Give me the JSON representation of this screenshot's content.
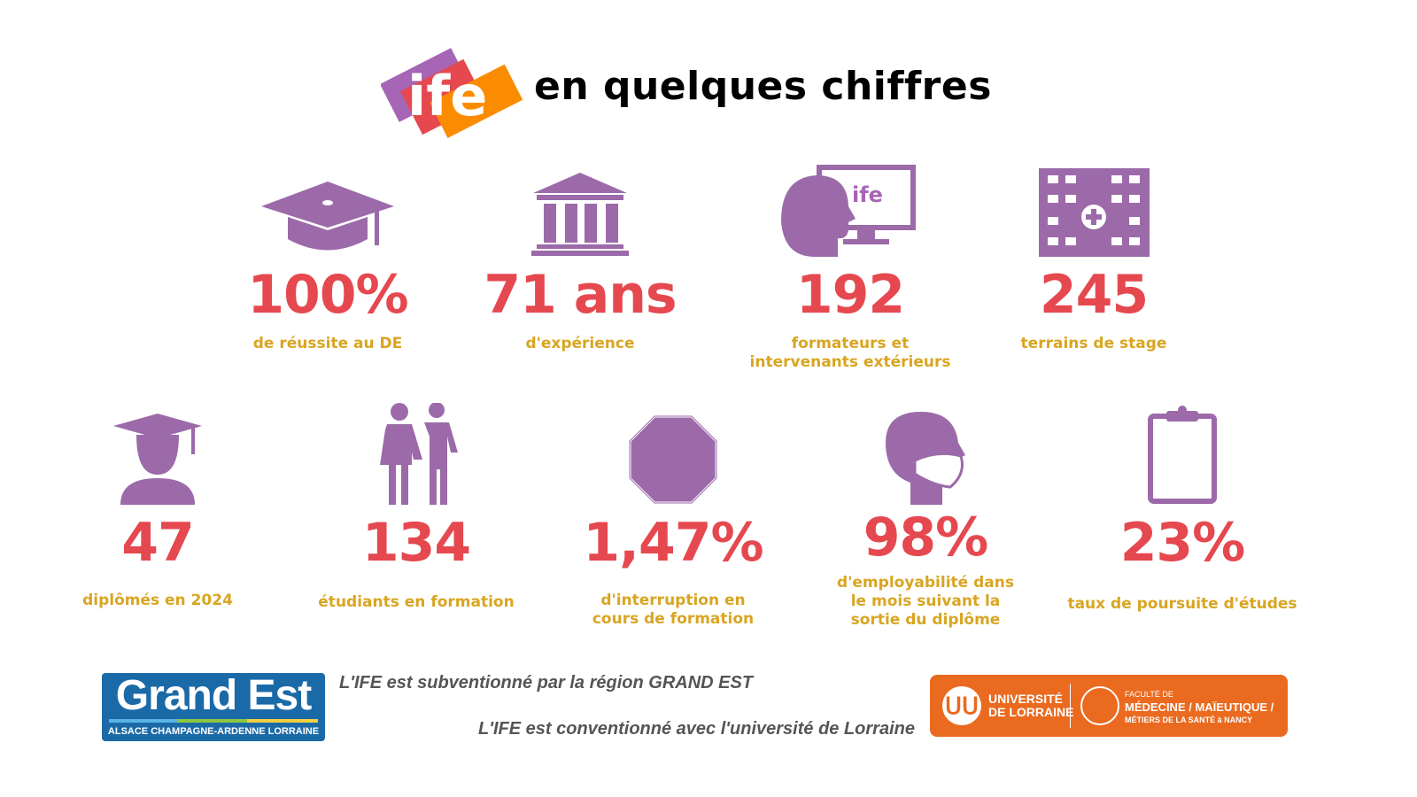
{
  "header": {
    "logo_text": "ife",
    "title": "en quelques chiffres"
  },
  "colors": {
    "purple": "#9c6aa9",
    "red": "#e5484f",
    "gold": "#d9a521",
    "orange": "#ea6a1f",
    "blue": "#1b6aa8"
  },
  "stats_row1": [
    {
      "icon": "graduation-cap-icon",
      "value": "100%",
      "label": "de réussite au DE"
    },
    {
      "icon": "institution-building-icon",
      "value": "71 ans",
      "label": "d'expérience"
    },
    {
      "icon": "person-screen-icon",
      "value": "192",
      "label": "formateurs et intervenants extérieurs",
      "screen_logo": "ife"
    },
    {
      "icon": "hospital-icon",
      "value": "245",
      "label": "terrains de stage"
    }
  ],
  "stats_row2": [
    {
      "icon": "graduate-person-icon",
      "value": "47",
      "label": "diplômés en 2024"
    },
    {
      "icon": "couple-people-icon",
      "value": "134",
      "label": "étudiants en formation"
    },
    {
      "icon": "stop-octagon-icon",
      "value": "1,47%",
      "label": "d'interruption en cours de formation"
    },
    {
      "icon": "masked-head-icon",
      "value": "98%",
      "label": "d'employabilité dans le mois suivant la sortie du diplôme"
    },
    {
      "icon": "clipboard-icon",
      "value": "23%",
      "label": "taux de poursuite d'études"
    }
  ],
  "footer": {
    "grand_est_logo": {
      "name": "Grand Est",
      "subtitle": "ALSACE CHAMPAGNE-ARDENNE LORRAINE"
    },
    "note1": "L'IFE est subventionné par la région GRAND EST",
    "note2": "L'IFE est conventionné avec l'université de Lorraine",
    "univ_logo": {
      "line1": "UNIVERSITÉ",
      "line2": "DE LORRAINE",
      "fac1": "FACULTÉ DE",
      "fac2": "MÉDECINE / MAÏEUTIQUE /",
      "fac3": "MÉTIERS DE LA SANTÉ à NANCY"
    }
  }
}
